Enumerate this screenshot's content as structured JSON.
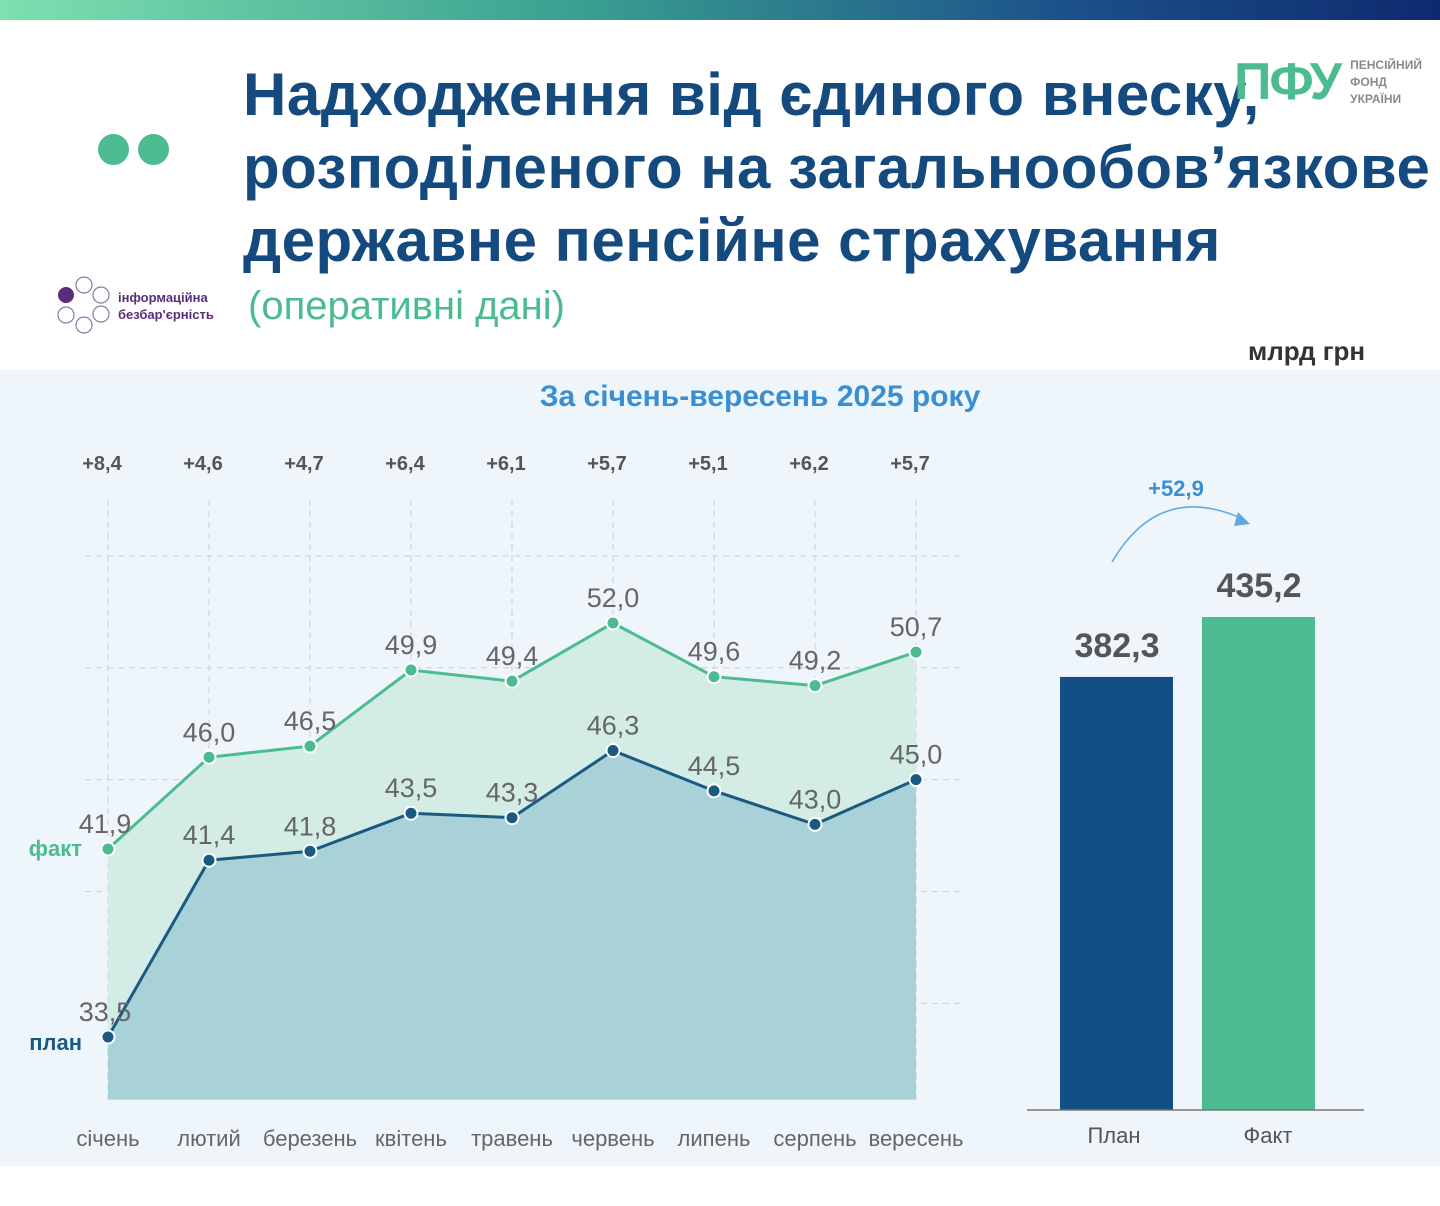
{
  "header": {
    "title_lines": [
      "Надходження від єдиного внеску,",
      "розподіленого на загальнообов’язкове",
      "державне пенсійне страхування"
    ],
    "subtitle": "(оперативні дані)",
    "unit": "млрд грн"
  },
  "logos": {
    "pfu": {
      "abbr": "ПФУ",
      "lines": [
        "ПЕНСІЙНИЙ",
        "ФОНД",
        "УКРАЇНИ"
      ]
    },
    "inclusion": {
      "lines": [
        "інформаційна",
        "безбар'єрність"
      ]
    }
  },
  "chart_data": [
    {
      "type": "line",
      "title": "За січень-вересень 2025 року",
      "categories": [
        "січень",
        "лютий",
        "березень",
        "квітень",
        "травень",
        "червень",
        "липень",
        "серпень",
        "вересень"
      ],
      "series": [
        {
          "name": "факт",
          "color": "#4dbb90",
          "values": [
            41.9,
            46.0,
            46.5,
            49.9,
            49.4,
            52.0,
            49.6,
            49.2,
            50.7
          ],
          "labels": [
            "41,9",
            "46,0",
            "46,5",
            "49,9",
            "49,4",
            "52,0",
            "49,6",
            "49,2",
            "50,7"
          ]
        },
        {
          "name": "план",
          "color": "#1b5a80",
          "values": [
            33.5,
            41.4,
            41.8,
            43.5,
            43.3,
            46.3,
            44.5,
            43.0,
            45.0
          ],
          "labels": [
            "33,5",
            "41,4",
            "41,8",
            "43,5",
            "43,3",
            "46,3",
            "44,5",
            "43,0",
            "45,0"
          ]
        }
      ],
      "differences": [
        "+8,4",
        "+4,6",
        "+4,7",
        "+6,4",
        "+6,1",
        "+5,7",
        "+5,1",
        "+6,2",
        "+5,7"
      ],
      "ylim": [
        30.7,
        56
      ],
      "gridlines": [
        35,
        40,
        45,
        50,
        55
      ]
    },
    {
      "type": "bar",
      "categories": [
        "План",
        "Факт"
      ],
      "values": [
        382.3,
        435.2
      ],
      "labels": [
        "382,3",
        "435,2"
      ],
      "colors": [
        "#134f84",
        "#4dbb90"
      ],
      "difference": "+52,9",
      "ylim": [
        0,
        435.2
      ]
    }
  ]
}
